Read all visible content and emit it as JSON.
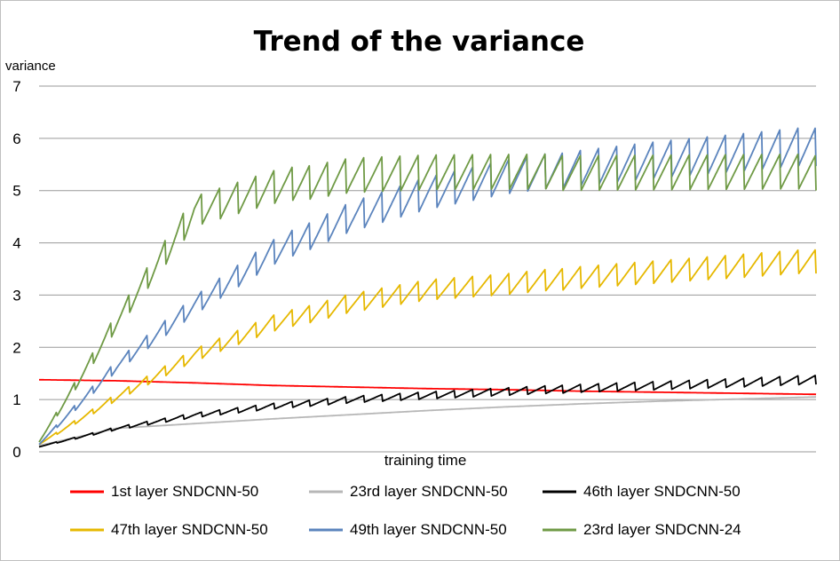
{
  "chart_data": {
    "type": "line",
    "title": "Trend of the variance",
    "ylabel": "variance",
    "xlabel": "training time",
    "ylim": [
      0,
      7
    ],
    "yticks": [
      0,
      1,
      2,
      3,
      4,
      5,
      6,
      7
    ],
    "x_tick_labels": false,
    "grid": "horizontal",
    "legend_position": "bottom",
    "legend_rows": [
      [
        "1st layer   SNDCNN-50",
        "23rd layer   SNDCNN-50",
        "46th layer   SNDCNN-50"
      ],
      [
        "47th layer   SNDCNN-50",
        "49th layer   SNDCNN-50",
        "23rd layer   SNDCNN-24"
      ]
    ],
    "x": [
      0,
      0.1,
      0.2,
      0.3,
      0.4,
      0.5,
      0.6,
      0.7,
      0.8,
      0.9,
      1.0
    ],
    "series": [
      {
        "name": "1st layer   SNDCNN-50",
        "color": "#ff0000",
        "sawtooth": false,
        "values": [
          1.38,
          1.36,
          1.32,
          1.27,
          1.24,
          1.21,
          1.19,
          1.16,
          1.14,
          1.12,
          1.1
        ]
      },
      {
        "name": "23rd layer   SNDCNN-50",
        "color": "#b7b7b7",
        "sawtooth": false,
        "values": [
          0.12,
          0.45,
          0.54,
          0.63,
          0.71,
          0.79,
          0.86,
          0.92,
          0.97,
          1.01,
          1.05
        ]
      },
      {
        "name": "46th layer   SNDCNN-50",
        "color": "#000000",
        "sawtooth": true,
        "values": [
          0.1,
          0.45,
          0.7,
          0.87,
          1.0,
          1.08,
          1.15,
          1.22,
          1.27,
          1.32,
          1.38
        ]
      },
      {
        "name": "47th layer   SNDCNN-50",
        "color": "#e6b800",
        "sawtooth": true,
        "values": [
          0.15,
          1.05,
          1.85,
          2.45,
          2.85,
          3.1,
          3.2,
          3.35,
          3.45,
          3.55,
          3.65
        ]
      },
      {
        "name": "49th layer   SNDCNN-50",
        "color": "#5b84bd",
        "sawtooth": true,
        "values": [
          0.15,
          1.65,
          2.8,
          3.8,
          4.5,
          4.95,
          5.25,
          5.45,
          5.6,
          5.72,
          5.85
        ]
      },
      {
        "name": "23rd layer   SNDCNN-24",
        "color": "#6f9a45",
        "sawtooth": true,
        "values": [
          0.2,
          2.5,
          4.6,
          5.05,
          5.3,
          5.35,
          5.35,
          5.35,
          5.35,
          5.35,
          5.35
        ]
      }
    ]
  }
}
